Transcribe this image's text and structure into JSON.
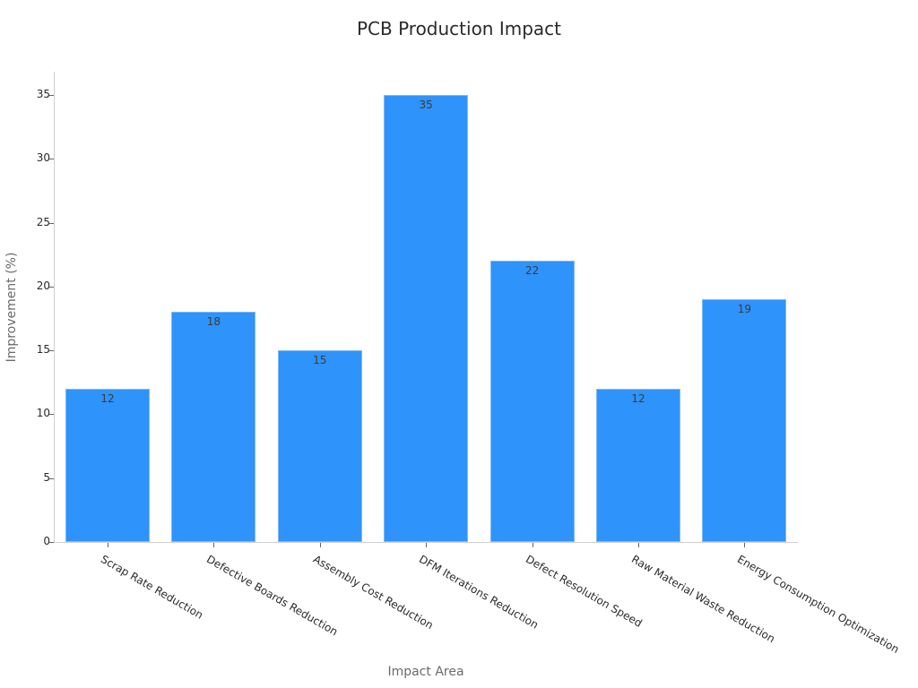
{
  "chart_data": {
    "type": "bar",
    "title": "PCB Production Impact",
    "xlabel": "Impact Area",
    "ylabel": "Improvement (%)",
    "categories": [
      "Scrap Rate Reduction",
      "Defective Boards Reduction",
      "Assembly Cost Reduction",
      "DFM Iterations Reduction",
      "Defect Resolution Speed",
      "Raw Material Waste Reduction",
      "Energy Consumption Optimization"
    ],
    "values": [
      12,
      18,
      15,
      35,
      22,
      12,
      19
    ],
    "data_labels": [
      "12",
      "18",
      "15",
      "35",
      "22",
      "12",
      "19"
    ],
    "ylim": [
      0,
      37
    ],
    "yticks": [
      "0",
      "5",
      "10",
      "15",
      "20",
      "25",
      "30",
      "35"
    ],
    "grid": false,
    "legend": null,
    "bar_color": "#2e93fa"
  }
}
